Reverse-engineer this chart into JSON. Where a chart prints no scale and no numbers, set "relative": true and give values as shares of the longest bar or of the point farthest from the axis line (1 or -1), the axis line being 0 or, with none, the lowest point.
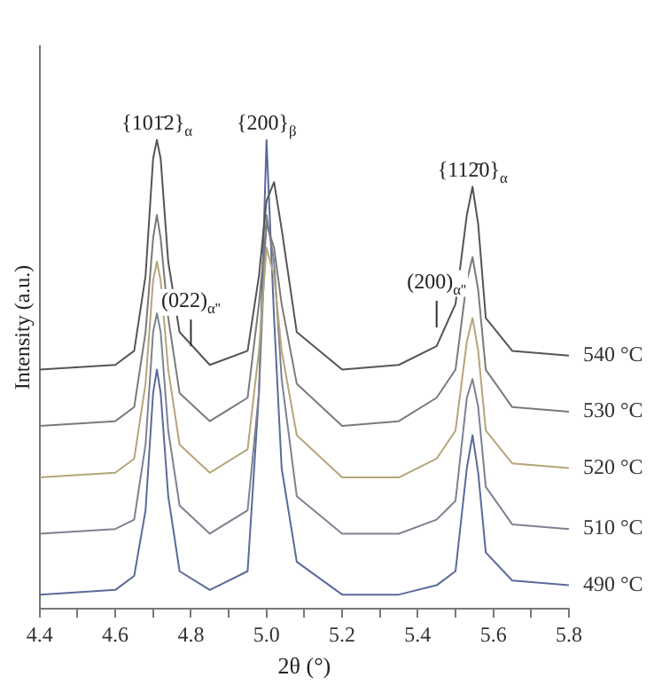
{
  "chart_data": {
    "type": "line",
    "relative": true,
    "xlabel": "2θ (°)",
    "ylabel": "Intensity (a.u.)",
    "xlim": [
      4.4,
      5.8
    ],
    "xticks": [
      {
        "value": 4.4,
        "label": "4.4"
      },
      {
        "value": 4.5,
        "label": null
      },
      {
        "value": 4.6,
        "label": "4.6"
      },
      {
        "value": 4.7,
        "label": null
      },
      {
        "value": 4.8,
        "label": "4.8"
      },
      {
        "value": 4.9,
        "label": null
      },
      {
        "value": 5.0,
        "label": "5.0"
      },
      {
        "value": 5.1,
        "label": null
      },
      {
        "value": 5.2,
        "label": "5.2"
      },
      {
        "value": 5.3,
        "label": null
      },
      {
        "value": 5.4,
        "label": "5.4"
      },
      {
        "value": 5.5,
        "label": null
      },
      {
        "value": 5.6,
        "label": "5.6"
      },
      {
        "value": 5.7,
        "label": null
      },
      {
        "value": 5.8,
        "label": "5.8"
      }
    ],
    "tick_labels": "x",
    "grid": false,
    "legend": false,
    "marker": "none",
    "line_style": "solid",
    "x": [
      4.4,
      4.6,
      4.65,
      4.68,
      4.7,
      4.71,
      4.72,
      4.74,
      4.77,
      4.85,
      4.95,
      4.98,
      5.0,
      5.02,
      5.04,
      5.08,
      5.2,
      5.35,
      5.45,
      5.5,
      5.53,
      5.545,
      5.56,
      5.58,
      5.65,
      5.8
    ],
    "series": [
      {
        "name": "540 °C",
        "color": "#555555",
        "values": [
          0.51,
          0.52,
          0.55,
          0.71,
          0.96,
          1.0,
          0.96,
          0.74,
          0.59,
          0.52,
          0.55,
          0.71,
          0.87,
          0.91,
          0.81,
          0.59,
          0.51,
          0.52,
          0.56,
          0.65,
          0.84,
          0.9,
          0.82,
          0.62,
          0.55,
          0.54
        ]
      },
      {
        "name": "530 °C",
        "color": "#7a7a7a",
        "values": [
          0.39,
          0.4,
          0.43,
          0.59,
          0.79,
          0.84,
          0.79,
          0.62,
          0.46,
          0.4,
          0.45,
          0.65,
          0.82,
          0.77,
          0.65,
          0.48,
          0.39,
          0.4,
          0.45,
          0.51,
          0.7,
          0.75,
          0.68,
          0.51,
          0.43,
          0.42
        ]
      },
      {
        "name": "520 °C",
        "color": "#b5a57a",
        "values": [
          0.28,
          0.29,
          0.32,
          0.48,
          0.7,
          0.74,
          0.7,
          0.51,
          0.35,
          0.29,
          0.34,
          0.55,
          0.77,
          0.71,
          0.55,
          0.37,
          0.28,
          0.28,
          0.32,
          0.38,
          0.57,
          0.62,
          0.55,
          0.38,
          0.31,
          0.3
        ]
      },
      {
        "name": "510 °C",
        "color": "#7c8291",
        "values": [
          0.16,
          0.17,
          0.19,
          0.35,
          0.59,
          0.63,
          0.59,
          0.38,
          0.22,
          0.16,
          0.21,
          0.46,
          0.84,
          0.74,
          0.49,
          0.24,
          0.16,
          0.16,
          0.19,
          0.23,
          0.45,
          0.49,
          0.43,
          0.26,
          0.18,
          0.17
        ]
      },
      {
        "name": "490 °C",
        "color": "#5a6a9a",
        "values": [
          0.03,
          0.04,
          0.07,
          0.21,
          0.46,
          0.51,
          0.46,
          0.24,
          0.08,
          0.04,
          0.08,
          0.46,
          1.0,
          0.62,
          0.3,
          0.1,
          0.03,
          0.03,
          0.05,
          0.08,
          0.3,
          0.37,
          0.29,
          0.12,
          0.06,
          0.05
        ]
      }
    ],
    "annotations": [
      {
        "text": "{101̄2}$_{α}$",
        "x": 4.71,
        "y": 1.0
      },
      {
        "text": "{200}$_{β}$",
        "x": 5.0,
        "y": 1.0
      },
      {
        "text": "{112̄0}$_{α}$",
        "x": 5.545,
        "y": 0.9
      },
      {
        "text": "(022)$_{α''}$",
        "x": 4.8,
        "y": 0.56
      },
      {
        "text": "(200)$_{α''}$",
        "x": 5.45,
        "y": 0.6
      }
    ]
  }
}
